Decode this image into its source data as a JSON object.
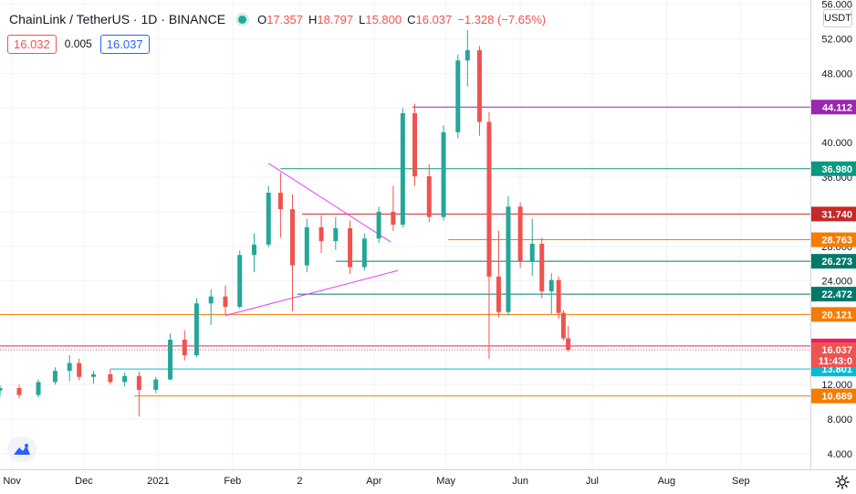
{
  "legend": {
    "title": "ChainLink / TetherUS · 1D · BINANCE",
    "ohlc": [
      {
        "key": "O",
        "value": "17.357"
      },
      {
        "key": "H",
        "value": "18.797"
      },
      {
        "key": "L",
        "value": "15.800"
      },
      {
        "key": "C",
        "value": "16.037"
      },
      {
        "key": "",
        "value": "−1.328 (−7.65%)"
      }
    ]
  },
  "quote": {
    "sell": "16.032",
    "spread": "0.005",
    "buy": "16.037"
  },
  "currency_label": "USDT",
  "colors": {
    "up": "#26a69a",
    "down": "#ef5350",
    "grid": "#f0f3fa",
    "axis": "#131722"
  },
  "icons": {
    "logo": "tradingview-logo-icon",
    "settings": "gear-icon",
    "live": "live-dot-icon"
  },
  "chart_data": {
    "type": "candlestick",
    "y_ticks": [
      "56.000",
      "52.000",
      "48.000",
      "44.000",
      "40.000",
      "36.000",
      "32.000",
      "28.000",
      "24.000",
      "20.000",
      "16.000",
      "12.000",
      "8.000",
      "4.000"
    ],
    "y_tick_values": [
      56,
      52,
      48,
      44,
      40,
      36,
      32,
      28,
      24,
      20,
      16,
      12,
      8,
      4
    ],
    "ylim": [
      2.2,
      56.5
    ],
    "x_labels": [
      {
        "label": "Nov",
        "date": "2020-11-01"
      },
      {
        "label": "Dec",
        "date": "2020-12-01"
      },
      {
        "label": "2021",
        "date": "2021-01-01"
      },
      {
        "label": "Feb",
        "date": "2021-02-01"
      },
      {
        "label": "2",
        "date": "2021-03-01"
      },
      {
        "label": "Apr",
        "date": "2021-04-01"
      },
      {
        "label": "May",
        "date": "2021-05-01"
      },
      {
        "label": "Jun",
        "date": "2021-06-01"
      },
      {
        "label": "Jul",
        "date": "2021-07-01"
      },
      {
        "label": "Aug",
        "date": "2021-08-01"
      },
      {
        "label": "Sep",
        "date": "2021-09-01"
      }
    ],
    "xlim": [
      "2020-10-27",
      "2021-09-30"
    ],
    "candles": [
      [
        "2020-10-27",
        11.3,
        11.9,
        10.6,
        11.6
      ],
      [
        "2020-11-04",
        11.6,
        12.0,
        10.4,
        10.8
      ],
      [
        "2020-11-12",
        10.8,
        12.6,
        10.5,
        12.3
      ],
      [
        "2020-11-19",
        12.3,
        14.0,
        12.0,
        13.6
      ],
      [
        "2020-11-25",
        13.6,
        15.4,
        12.4,
        14.5
      ],
      [
        "2020-11-29",
        14.5,
        15.0,
        12.5,
        12.9
      ],
      [
        "2020-12-05",
        12.9,
        13.6,
        12.1,
        13.2
      ],
      [
        "2020-12-12",
        13.2,
        13.8,
        12.0,
        12.3
      ],
      [
        "2020-12-18",
        12.3,
        13.4,
        11.8,
        13.0
      ],
      [
        "2020-12-24",
        13.0,
        13.5,
        8.3,
        11.4
      ],
      [
        "2020-12-31",
        11.4,
        12.9,
        11.0,
        12.6
      ],
      [
        "2021-01-06",
        12.6,
        17.9,
        12.5,
        17.2
      ],
      [
        "2021-01-12",
        17.2,
        18.3,
        14.8,
        15.4
      ],
      [
        "2021-01-17",
        15.4,
        22.0,
        15.2,
        21.4
      ],
      [
        "2021-01-23",
        21.4,
        23.0,
        18.9,
        22.2
      ],
      [
        "2021-01-29",
        22.2,
        23.5,
        20.1,
        21.0
      ],
      [
        "2021-02-04",
        21.0,
        27.5,
        20.8,
        27.0
      ],
      [
        "2021-02-10",
        27.0,
        29.5,
        25.0,
        28.2
      ],
      [
        "2021-02-16",
        28.2,
        35.0,
        27.9,
        34.2
      ],
      [
        "2021-02-21",
        34.2,
        36.5,
        29.0,
        32.3
      ],
      [
        "2021-02-26",
        32.3,
        34.0,
        20.5,
        25.8
      ],
      [
        "2021-03-04",
        25.8,
        31.2,
        25.0,
        30.2
      ],
      [
        "2021-03-10",
        30.2,
        31.6,
        27.2,
        28.6
      ],
      [
        "2021-03-16",
        28.6,
        31.4,
        27.6,
        30.1
      ],
      [
        "2021-03-22",
        30.1,
        31.0,
        24.8,
        25.6
      ],
      [
        "2021-03-28",
        25.6,
        29.5,
        25.2,
        28.9
      ],
      [
        "2021-04-03",
        28.9,
        32.6,
        28.4,
        32.0
      ],
      [
        "2021-04-09",
        32.0,
        35.0,
        29.8,
        30.5
      ],
      [
        "2021-04-13",
        30.5,
        44.0,
        30.2,
        43.4
      ],
      [
        "2021-04-18",
        43.4,
        44.5,
        35.0,
        36.1
      ],
      [
        "2021-04-24",
        36.1,
        37.5,
        30.8,
        31.4
      ],
      [
        "2021-04-30",
        31.4,
        42.0,
        31.0,
        41.2
      ],
      [
        "2021-05-06",
        41.2,
        50.2,
        40.5,
        49.5
      ],
      [
        "2021-05-10",
        49.5,
        53.0,
        46.5,
        50.7
      ],
      [
        "2021-05-15",
        50.7,
        51.2,
        40.8,
        42.4
      ],
      [
        "2021-05-19",
        42.4,
        43.5,
        15.0,
        24.5
      ],
      [
        "2021-05-23",
        24.5,
        29.8,
        19.8,
        20.4
      ],
      [
        "2021-05-27",
        20.4,
        33.8,
        20.0,
        32.6
      ],
      [
        "2021-06-01",
        32.6,
        33.1,
        25.5,
        26.3
      ],
      [
        "2021-06-06",
        26.3,
        31.2,
        24.6,
        28.3
      ],
      [
        "2021-06-10",
        28.3,
        29.0,
        22.0,
        22.8
      ],
      [
        "2021-06-14",
        22.8,
        24.9,
        20.2,
        24.1
      ],
      [
        "2021-06-17",
        24.1,
        24.5,
        19.6,
        20.3
      ],
      [
        "2021-06-19",
        20.3,
        20.6,
        17.1,
        17.36
      ],
      [
        "2021-06-21",
        17.357,
        18.797,
        15.8,
        16.037
      ]
    ],
    "horizontal_levels": [
      {
        "label": "44.112",
        "value": 44.112,
        "color": "#9c27b0",
        "start": "2021-04-17"
      },
      {
        "label": "36.980",
        "value": 36.98,
        "color": "#089981",
        "start": "2021-02-21"
      },
      {
        "label": "31.740",
        "value": 31.74,
        "color": "#c62828",
        "start": "2021-03-02"
      },
      {
        "label": "28.763",
        "value": 28.763,
        "color": "#f57c00",
        "start": "2021-05-02"
      },
      {
        "label": "26.273",
        "value": 26.273,
        "color": "#00796b",
        "start": "2021-03-16"
      },
      {
        "label": "22.472",
        "value": 22.472,
        "color": "#00796b",
        "start": "2021-02-28"
      },
      {
        "label": "20.121",
        "value": 20.121,
        "color": "#f57c00",
        "start": "2020-10-27"
      },
      {
        "label": "16.476",
        "value": 16.476,
        "color": "#e91e63",
        "start": "2020-10-27"
      },
      {
        "label": "13.801",
        "value": 13.801,
        "color": "#00bcd4",
        "start": "2020-12-12"
      },
      {
        "label": "10.689",
        "value": 10.689,
        "color": "#f57c00",
        "start": "2020-12-22"
      }
    ],
    "trendlines": [
      {
        "from": [
          "2021-02-16",
          37.6
        ],
        "to": [
          "2021-04-08",
          28.5
        ],
        "color": "#e040fb"
      },
      {
        "from": [
          "2021-01-29",
          20.0
        ],
        "to": [
          "2021-04-11",
          25.2
        ],
        "color": "#e040fb"
      }
    ],
    "last_price": {
      "price": "16.037",
      "countdown": "11:43:0",
      "value": 16.037,
      "color": "#ef5350"
    }
  }
}
